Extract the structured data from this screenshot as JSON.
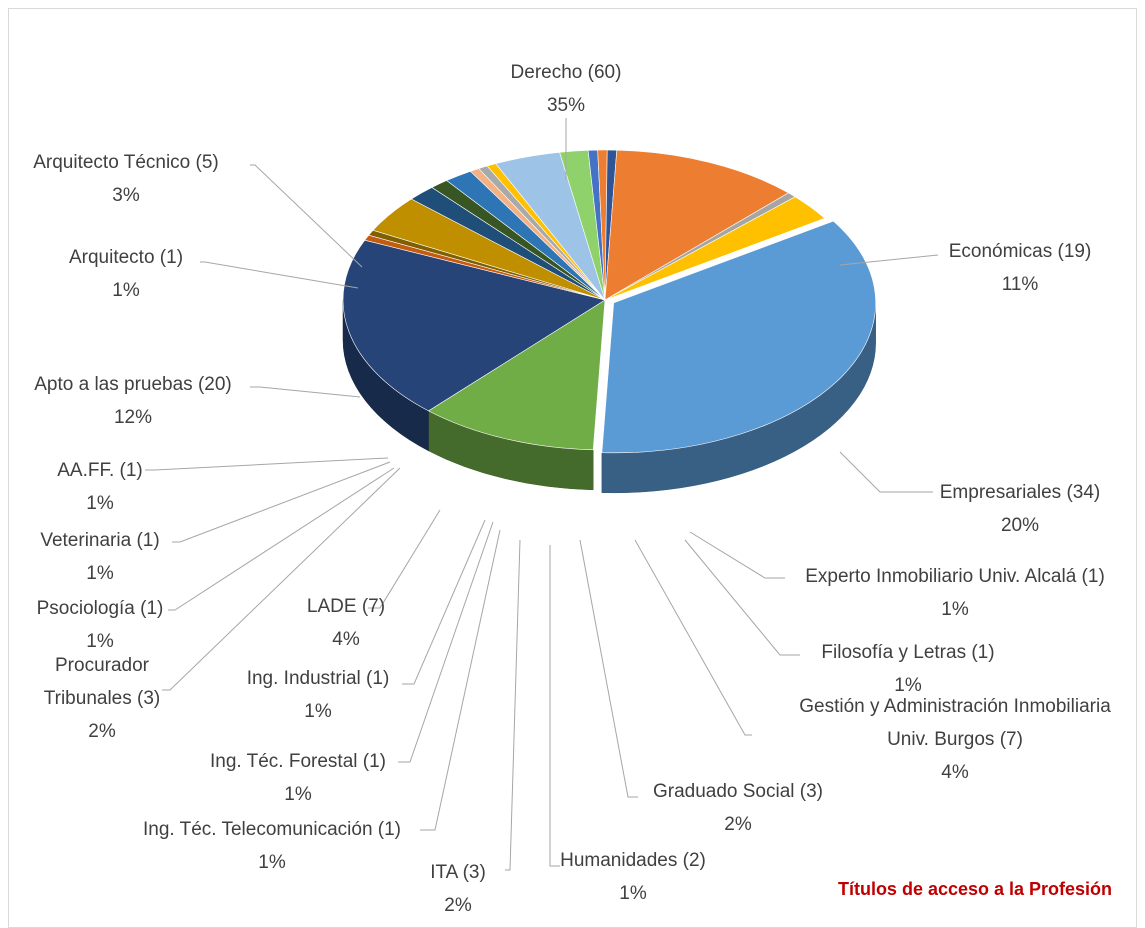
{
  "chart_data": {
    "type": "pie",
    "style": "3d-exploded",
    "title": "Títulos de acceso a la Profesión",
    "slices": [
      {
        "label": "Derecho (60)",
        "percent": "35%",
        "value": 60,
        "color": "#5b9bd5"
      },
      {
        "label": "Económicas (19)",
        "percent": "11%",
        "value": 19,
        "color": "#70ad47"
      },
      {
        "label": "Empresariales (34)",
        "percent": "20%",
        "value": 34,
        "color": "#264478"
      },
      {
        "label": "Experto Inmobiliario Univ. Alcalá (1)",
        "percent": "1%",
        "value": 1,
        "color": "#c55a11"
      },
      {
        "label": "Filosofía y Letras (1)",
        "percent": "1%",
        "value": 1,
        "color": "#7f6000"
      },
      {
        "label": "Gestión y Administración Inmobiliaria Univ. Burgos (7)",
        "percent": "4%",
        "value": 7,
        "color": "#bf8f00"
      },
      {
        "label": "Graduado Social (3)",
        "percent": "2%",
        "value": 3,
        "color": "#1f4e79"
      },
      {
        "label": "Humanidades (2)",
        "percent": "1%",
        "value": 2,
        "color": "#375623"
      },
      {
        "label": "ITA (3)",
        "percent": "2%",
        "value": 3,
        "color": "#2e75b6"
      },
      {
        "label": "Ing. Téc. Telecomunicación (1)",
        "percent": "1%",
        "value": 1,
        "color": "#f4b183"
      },
      {
        "label": "Ing. Téc. Forestal (1)",
        "percent": "1%",
        "value": 1,
        "color": "#a9a9a9"
      },
      {
        "label": "Ing. Industrial (1)",
        "percent": "1%",
        "value": 1,
        "color": "#ffc000"
      },
      {
        "label": "LADE (7)",
        "percent": "4%",
        "value": 7,
        "color": "#9dc3e6"
      },
      {
        "label": "Procurador Tribunales (3)",
        "percent": "2%",
        "value": 3,
        "color": "#8fd16b"
      },
      {
        "label": "Psociología (1)",
        "percent": "1%",
        "value": 1,
        "color": "#4472c4"
      },
      {
        "label": "Veterinaria (1)",
        "percent": "1%",
        "value": 1,
        "color": "#ed7d31"
      },
      {
        "label": "AA.FF. (1)",
        "percent": "1%",
        "value": 1,
        "color": "#2f5597"
      },
      {
        "label": "Apto a las pruebas (20)",
        "percent": "12%",
        "value": 20,
        "color": "#ed7d31"
      },
      {
        "label": "Arquitecto (1)",
        "percent": "1%",
        "value": 1,
        "color": "#a5a5a5"
      },
      {
        "label": "Arquitecto Técnico (5)",
        "percent": "3%",
        "value": 5,
        "color": "#ffc000"
      }
    ]
  }
}
